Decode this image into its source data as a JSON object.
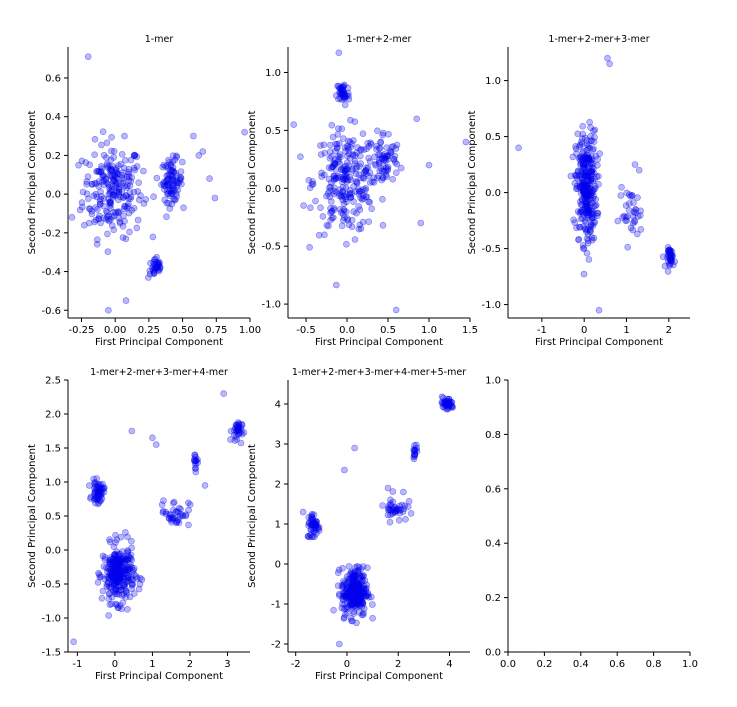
{
  "figure": {
    "dot_color": "#0000ee",
    "dot_opacity": 0.28,
    "axis_color": "#000000"
  },
  "chart_data": [
    {
      "type": "scatter",
      "title": "1-mer",
      "xlabel": "First Principal Component",
      "ylabel": "Second Principal Component",
      "xlim": [
        -0.35,
        1.0
      ],
      "ylim": [
        -0.64,
        0.76
      ],
      "xticks": [
        "-0.25",
        "0.00",
        "0.25",
        "0.50",
        "0.75",
        "1.00"
      ],
      "xtick_values": [
        -0.25,
        0.0,
        0.25,
        0.5,
        0.75,
        1.0
      ],
      "yticks": [
        "-0.6",
        "-0.4",
        "-0.2",
        "0.0",
        "0.2",
        "0.4",
        "0.6"
      ],
      "ytick_values": [
        -0.6,
        -0.4,
        -0.2,
        0.0,
        0.2,
        0.4,
        0.6
      ],
      "clusters": [
        {
          "cx": -0.02,
          "cy": 0.02,
          "sx": 0.2,
          "sy": 0.22,
          "n": 230
        },
        {
          "cx": 0.42,
          "cy": 0.07,
          "sx": 0.07,
          "sy": 0.1,
          "n": 90
        },
        {
          "cx": 0.3,
          "cy": -0.38,
          "sx": 0.05,
          "sy": 0.05,
          "n": 35
        }
      ],
      "series": [
        {
          "points": [
            [
              -0.2,
              0.71
            ],
            [
              0.96,
              0.32
            ],
            [
              -0.05,
              -0.6
            ],
            [
              0.62,
              0.2
            ],
            [
              0.7,
              0.08
            ],
            [
              0.74,
              -0.02
            ],
            [
              0.58,
              0.3
            ],
            [
              -0.32,
              -0.12
            ],
            [
              0.65,
              0.22
            ],
            [
              0.08,
              -0.55
            ]
          ]
        }
      ]
    },
    {
      "type": "scatter",
      "title": "1-mer+2-mer",
      "xlabel": "First Principal Component",
      "ylabel": "Second Principal Component",
      "xlim": [
        -0.72,
        1.5
      ],
      "ylim": [
        -1.12,
        1.22
      ],
      "xticks": [
        "-0.5",
        "0.0",
        "0.5",
        "1.0",
        "1.5"
      ],
      "xtick_values": [
        -0.5,
        0.0,
        0.5,
        1.0,
        1.5
      ],
      "yticks": [
        "-1.0",
        "-0.5",
        "0.0",
        "0.5",
        "1.0"
      ],
      "ytick_values": [
        -1.0,
        -0.5,
        0.0,
        0.5,
        1.0
      ],
      "clusters": [
        {
          "cx": -0.02,
          "cy": 0.05,
          "sx": 0.35,
          "sy": 0.4,
          "n": 240
        },
        {
          "cx": -0.05,
          "cy": 0.82,
          "sx": 0.07,
          "sy": 0.1,
          "n": 40
        },
        {
          "cx": 0.45,
          "cy": 0.25,
          "sx": 0.18,
          "sy": 0.22,
          "n": 70
        }
      ],
      "series": [
        {
          "points": [
            [
              0.6,
              -1.05
            ],
            [
              1.45,
              0.4
            ],
            [
              0.85,
              0.6
            ],
            [
              -0.65,
              0.55
            ],
            [
              -0.1,
              1.17
            ],
            [
              0.9,
              -0.3
            ],
            [
              1.0,
              0.2
            ]
          ]
        }
      ]
    },
    {
      "type": "scatter",
      "title": "1-mer+2-mer+3-mer",
      "xlabel": "First Principal Component",
      "ylabel": "Second Principal Component",
      "xlim": [
        -1.8,
        2.5
      ],
      "ylim": [
        -1.12,
        1.3
      ],
      "xticks": [
        "-1",
        "0",
        "1",
        "2"
      ],
      "xtick_values": [
        -1,
        0,
        1,
        2
      ],
      "yticks": [
        "-1.0",
        "-0.5",
        "0.0",
        "0.5",
        "1.0"
      ],
      "ytick_values": [
        -1.0,
        -0.5,
        0.0,
        0.5,
        1.0
      ],
      "clusters": [
        {
          "cx": 0.05,
          "cy": 0.05,
          "sx": 0.22,
          "sy": 0.45,
          "n": 300
        },
        {
          "cx": 1.1,
          "cy": -0.2,
          "sx": 0.25,
          "sy": 0.2,
          "n": 35
        },
        {
          "cx": 2.05,
          "cy": -0.58,
          "sx": 0.09,
          "sy": 0.08,
          "n": 40
        }
      ],
      "series": [
        {
          "points": [
            [
              -1.55,
              0.4
            ],
            [
              0.6,
              1.15
            ],
            [
              0.35,
              -1.05
            ],
            [
              1.3,
              0.2
            ],
            [
              1.2,
              0.25
            ],
            [
              0.55,
              1.2
            ]
          ]
        }
      ]
    },
    {
      "type": "scatter",
      "title": "1-mer+2-mer+3-mer+4-mer",
      "xlabel": "First Principal Component",
      "ylabel": "Second Principal Component",
      "xlim": [
        -1.25,
        3.6
      ],
      "ylim": [
        -1.5,
        2.5
      ],
      "xticks": [
        "-1",
        "0",
        "1",
        "2",
        "3"
      ],
      "xtick_values": [
        -1,
        0,
        1,
        2,
        3
      ],
      "yticks": [
        "-1.5",
        "-1.0",
        "-0.5",
        "0.0",
        "0.5",
        "1.0",
        "1.5",
        "2.0",
        "2.5"
      ],
      "ytick_values": [
        -1.5,
        -1.0,
        -0.5,
        0.0,
        0.5,
        1.0,
        1.5,
        2.0,
        2.5
      ],
      "clusters": [
        {
          "cx": 0.1,
          "cy": -0.35,
          "sx": 0.38,
          "sy": 0.38,
          "n": 280
        },
        {
          "cx": -0.45,
          "cy": 0.85,
          "sx": 0.14,
          "sy": 0.14,
          "n": 60
        },
        {
          "cx": 1.6,
          "cy": 0.55,
          "sx": 0.35,
          "sy": 0.18,
          "n": 40
        },
        {
          "cx": 2.15,
          "cy": 1.3,
          "sx": 0.08,
          "sy": 0.12,
          "n": 15
        },
        {
          "cx": 3.25,
          "cy": 1.75,
          "sx": 0.12,
          "sy": 0.15,
          "n": 35
        }
      ],
      "series": [
        {
          "points": [
            [
              -1.1,
              -1.35
            ],
            [
              1.0,
              1.65
            ],
            [
              0.45,
              1.75
            ],
            [
              2.9,
              2.3
            ],
            [
              1.1,
              1.55
            ],
            [
              2.4,
              0.95
            ]
          ]
        }
      ]
    },
    {
      "type": "scatter",
      "title": "1-mer+2-mer+3-mer+4-mer+5-mer",
      "xlabel": "First Principal Component",
      "ylabel": "Second Principal Component",
      "xlim": [
        -2.3,
        4.8
      ],
      "ylim": [
        -2.2,
        4.6
      ],
      "xticks": [
        "-2",
        "0",
        "2",
        "4"
      ],
      "xtick_values": [
        -2,
        0,
        2,
        4
      ],
      "yticks": [
        "-2",
        "-1",
        "0",
        "1",
        "2",
        "3",
        "4"
      ],
      "ytick_values": [
        -2,
        -1,
        0,
        1,
        2,
        3,
        4
      ],
      "clusters": [
        {
          "cx": 0.3,
          "cy": -0.7,
          "sx": 0.45,
          "sy": 0.55,
          "n": 280
        },
        {
          "cx": -1.3,
          "cy": 0.95,
          "sx": 0.22,
          "sy": 0.3,
          "n": 50
        },
        {
          "cx": 1.9,
          "cy": 1.4,
          "sx": 0.4,
          "sy": 0.3,
          "n": 40
        },
        {
          "cx": 2.65,
          "cy": 2.85,
          "sx": 0.1,
          "sy": 0.15,
          "n": 15
        },
        {
          "cx": 3.9,
          "cy": 4.0,
          "sx": 0.25,
          "sy": 0.15,
          "n": 40
        }
      ],
      "series": [
        {
          "points": [
            [
              -0.3,
              -2.0
            ],
            [
              0.3,
              2.9
            ],
            [
              -0.1,
              2.35
            ],
            [
              2.2,
              1.8
            ],
            [
              1.6,
              1.9
            ]
          ]
        }
      ]
    },
    {
      "type": "scatter",
      "title": "",
      "xlabel": "",
      "ylabel": "",
      "xlim": [
        0,
        1
      ],
      "ylim": [
        0,
        1
      ],
      "xticks": [
        "0.0",
        "0.2",
        "0.4",
        "0.6",
        "0.8",
        "1.0"
      ],
      "xtick_values": [
        0.0,
        0.2,
        0.4,
        0.6,
        0.8,
        1.0
      ],
      "yticks": [
        "0.0",
        "0.2",
        "0.4",
        "0.6",
        "0.8",
        "1.0"
      ],
      "ytick_values": [
        0.0,
        0.2,
        0.4,
        0.6,
        0.8,
        1.0
      ],
      "clusters": [],
      "series": [
        {
          "points": []
        }
      ]
    }
  ]
}
